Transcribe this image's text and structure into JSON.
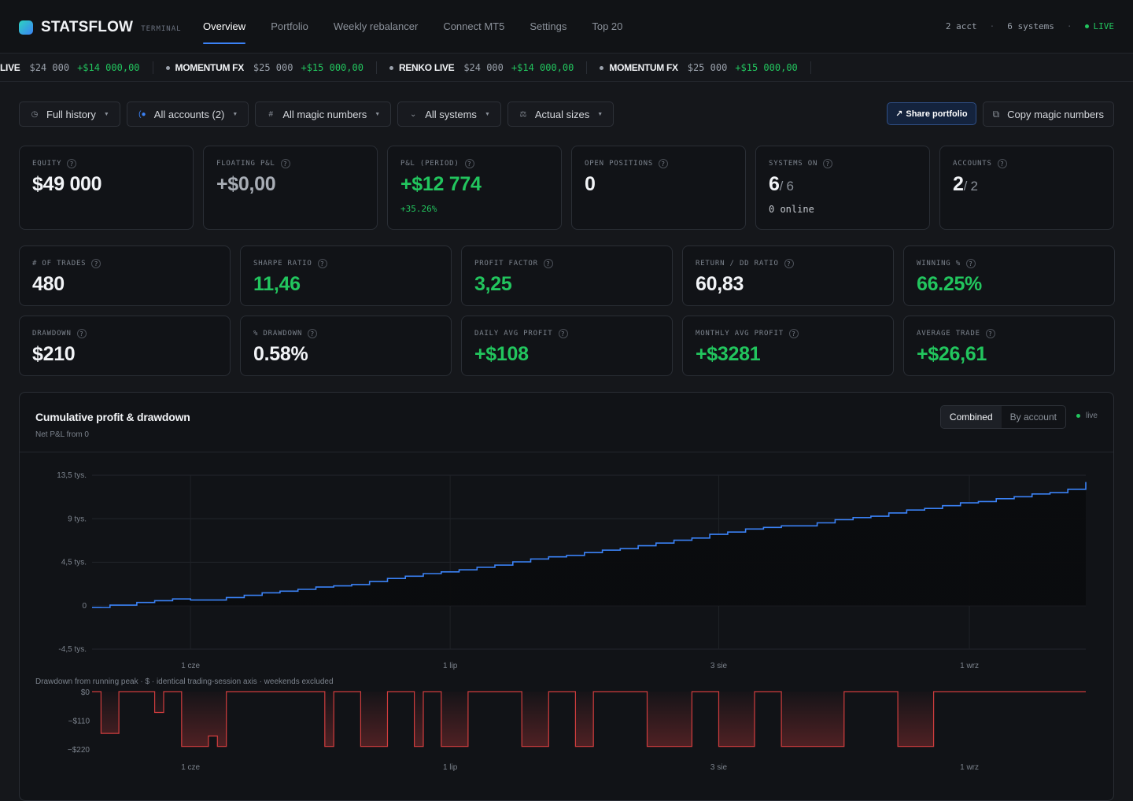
{
  "brand": {
    "name": "STATSFLOW",
    "sub": "TERMINAL"
  },
  "nav": {
    "tabs": [
      "Overview",
      "Portfolio",
      "Weekly rebalancer",
      "Connect MT5",
      "Settings",
      "Top 20"
    ],
    "active": 0,
    "status": {
      "accounts": "2 acct",
      "systems": "6 systems",
      "live": "LIVE"
    }
  },
  "ticker": [
    {
      "name": "LIVE",
      "value": "$24 000",
      "pnl": "+$14 000,00",
      "cut": true
    },
    {
      "name": "MOMENTUM FX",
      "value": "$25 000",
      "pnl": "+$15 000,00"
    },
    {
      "name": "RENKO LIVE",
      "value": "$24 000",
      "pnl": "+$14 000,00"
    },
    {
      "name": "MOMENTUM FX",
      "value": "$25 000",
      "pnl": "+$15 000,00"
    }
  ],
  "filters": {
    "history": "Full history",
    "accounts": "All accounts (2)",
    "magic": "All magic numbers",
    "systems": "All systems",
    "sizes": "Actual sizes",
    "share": "Share portfolio",
    "copy": "Copy magic numbers"
  },
  "kpis_top": [
    {
      "label": "Equity",
      "value": "$49 000",
      "style": ""
    },
    {
      "label": "Floating P&L",
      "value": "+$0,00",
      "style": "muted"
    },
    {
      "label": "P&L (period)",
      "value": "+$12 774",
      "style": "green",
      "sub": "+35.26%",
      "sub_style": "green"
    },
    {
      "label": "Open positions",
      "value": "0",
      "style": ""
    },
    {
      "label": "Systems on",
      "value": "6",
      "frac": "/ 6",
      "style": "",
      "sub": "0 online"
    },
    {
      "label": "Accounts",
      "value": "2",
      "frac": "/ 2",
      "style": ""
    }
  ],
  "kpis_mid": [
    {
      "label": "# of trades",
      "value": "480",
      "style": ""
    },
    {
      "label": "Sharpe ratio",
      "value": "11,46",
      "style": "green"
    },
    {
      "label": "Profit factor",
      "value": "3,25",
      "style": "green"
    },
    {
      "label": "Return / DD ratio",
      "value": "60,83",
      "style": ""
    },
    {
      "label": "Winning %",
      "value": "66.25%",
      "style": "green"
    }
  ],
  "kpis_bot": [
    {
      "label": "Drawdown",
      "value": "$210",
      "style": ""
    },
    {
      "label": "% Drawdown",
      "value": "0.58%",
      "style": ""
    },
    {
      "label": "Daily avg profit",
      "value": "+$108",
      "style": "green"
    },
    {
      "label": "Monthly avg profit",
      "value": "+$3281",
      "style": "green"
    },
    {
      "label": "Average trade",
      "value": "+$26,61",
      "style": "green"
    }
  ],
  "panel": {
    "title": "Cumulative profit & drawdown",
    "subtitle": "Net P&L from 0",
    "modes": [
      "Combined",
      "By account"
    ],
    "active_mode": 0,
    "live": "live",
    "dd_caption": "Drawdown from running peak · $ · identical trading-session axis · weekends excluded"
  },
  "colors": {
    "accent": "#3b82f6",
    "positive": "#22c55e",
    "drawdown": "#ef4444"
  },
  "chart_data": [
    {
      "type": "line",
      "title": "Cumulative profit & drawdown",
      "subtitle": "Net P&L from 0",
      "y_ticks": [
        "13,5 tys.",
        "9 tys.",
        "4,5 tys.",
        "0",
        "-4,5 tys."
      ],
      "y_tick_values": [
        13500,
        9000,
        4500,
        0,
        -4500
      ],
      "ylim": [
        -4500,
        13500
      ],
      "x_ticks": [
        "1 cze",
        "1 lip",
        "3 sie",
        "1 wrz"
      ],
      "x_tick_sessions": [
        11,
        40,
        70,
        98
      ],
      "n_sessions": 112,
      "series": [
        {
          "values": [
            -180,
            -180,
            50,
            50,
            50,
            330,
            330,
            520,
            520,
            700,
            700,
            580,
            580,
            580,
            580,
            840,
            840,
            1070,
            1070,
            1330,
            1330,
            1500,
            1500,
            1690,
            1690,
            1930,
            1930,
            2050,
            2050,
            2190,
            2190,
            2500,
            2500,
            2810,
            2810,
            3050,
            3050,
            3320,
            3320,
            3500,
            3500,
            3710,
            3710,
            3970,
            3970,
            4200,
            4200,
            4530,
            4530,
            4830,
            4830,
            5050,
            5050,
            5200,
            5200,
            5490,
            5490,
            5750,
            5750,
            5900,
            5900,
            6200,
            6200,
            6480,
            6480,
            6770,
            6770,
            7000,
            7000,
            7380,
            7380,
            7620,
            7620,
            7940,
            7940,
            8100,
            8100,
            8260,
            8260,
            8260,
            8260,
            8570,
            8570,
            8900,
            8900,
            9120,
            9120,
            9260,
            9260,
            9600,
            9600,
            9900,
            9900,
            10060,
            10060,
            10350,
            10350,
            10640,
            10640,
            10780,
            10780,
            11070,
            11070,
            11280,
            11280,
            11560,
            11560,
            11700,
            11700,
            12050,
            12050,
            12800
          ]
        }
      ],
      "grid": true
    },
    {
      "type": "area",
      "title": "Drawdown from running peak · $ · identical trading-session axis · weekends excluded",
      "y_ticks": [
        "$0",
        "−$110",
        "−$220"
      ],
      "ylim": [
        -220,
        0
      ],
      "x_ticks": [
        "1 cze",
        "1 lip",
        "3 sie",
        "1 wrz"
      ],
      "n_sessions": 112,
      "series": [
        {
          "values": [
            0,
            -160,
            -160,
            0,
            0,
            0,
            0,
            -80,
            0,
            0,
            -210,
            -210,
            -210,
            -170,
            -210,
            0,
            0,
            0,
            0,
            0,
            0,
            0,
            0,
            0,
            0,
            0,
            -210,
            0,
            0,
            0,
            -210,
            -210,
            -210,
            0,
            0,
            0,
            -210,
            0,
            0,
            -210,
            -210,
            -210,
            0,
            0,
            0,
            0,
            0,
            0,
            -210,
            -210,
            -210,
            0,
            0,
            0,
            -210,
            -210,
            0,
            0,
            0,
            0,
            0,
            0,
            -210,
            -210,
            -210,
            -210,
            -210,
            0,
            0,
            0,
            -210,
            -210,
            -210,
            -210,
            0,
            0,
            0,
            -210,
            -210,
            -210,
            -210,
            -210,
            -210,
            -210,
            0,
            0,
            0,
            0,
            0,
            0,
            -210,
            -210,
            -210,
            -210,
            0,
            0,
            0,
            0,
            0,
            0,
            0,
            0,
            0,
            0,
            0,
            0,
            0,
            0,
            0,
            0,
            0,
            0
          ]
        }
      ]
    }
  ]
}
